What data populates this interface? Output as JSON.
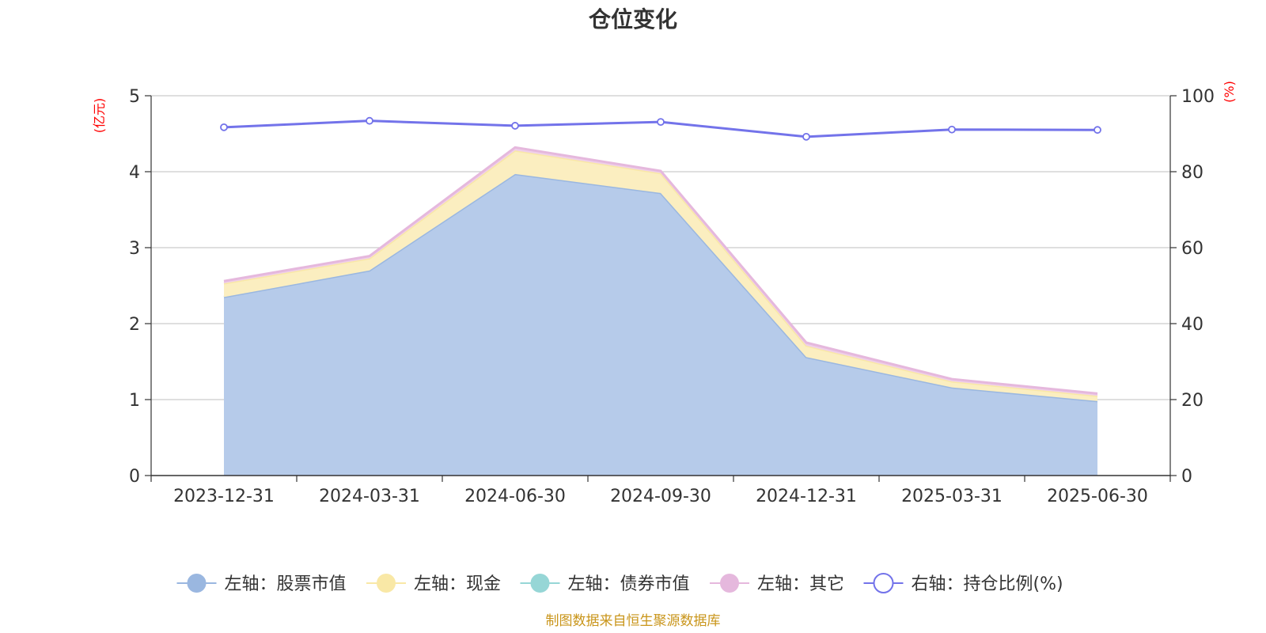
{
  "chart_data": {
    "type": "area",
    "title": "仓位变化",
    "categories": [
      "2023-12-31",
      "2024-03-31",
      "2024-06-30",
      "2024-09-30",
      "2024-12-31",
      "2025-03-31",
      "2025-06-30"
    ],
    "left_axis": {
      "unit": "(亿元)",
      "ylim": [
        0,
        5
      ],
      "ticks": [
        "0",
        "1",
        "2",
        "3",
        "4",
        "5"
      ]
    },
    "right_axis": {
      "unit": "(%)",
      "ylim": [
        0,
        100
      ],
      "ticks": [
        "0",
        "20",
        "40",
        "60",
        "80",
        "100"
      ]
    },
    "grid": true,
    "legend_position": "bottom",
    "series": [
      {
        "name": "左轴：股票市值",
        "type": "stacked-area",
        "axis": "left",
        "color": "#9ab7e0",
        "fill": "#b6cbea",
        "values": [
          2.35,
          2.7,
          3.97,
          3.72,
          1.56,
          1.16,
          0.98
        ]
      },
      {
        "name": "左轴：现金",
        "type": "stacked-area",
        "axis": "left",
        "color": "#f9e8a6",
        "fill": "#fbeec0",
        "values": [
          0.18,
          0.16,
          0.31,
          0.26,
          0.15,
          0.08,
          0.07
        ]
      },
      {
        "name": "左轴：债券市值",
        "type": "stacked-area",
        "axis": "left",
        "color": "#96d6d6",
        "fill": "#b8e3e3",
        "values": [
          0,
          0,
          0,
          0,
          0,
          0,
          0
        ]
      },
      {
        "name": "左轴：其它",
        "type": "stacked-area",
        "axis": "left",
        "color": "#e5b8dd",
        "fill": "#efcfe9",
        "values": [
          0.03,
          0.03,
          0.04,
          0.03,
          0.04,
          0.03,
          0.03
        ]
      },
      {
        "name": "右轴：持仓比例(%)",
        "type": "line",
        "axis": "right",
        "color": "#7373ea",
        "values": [
          91.7,
          93.4,
          92.1,
          93.1,
          89.2,
          91.1,
          91.0
        ]
      }
    ]
  },
  "footer": {
    "source": "制图数据来自恒生聚源数据库"
  }
}
